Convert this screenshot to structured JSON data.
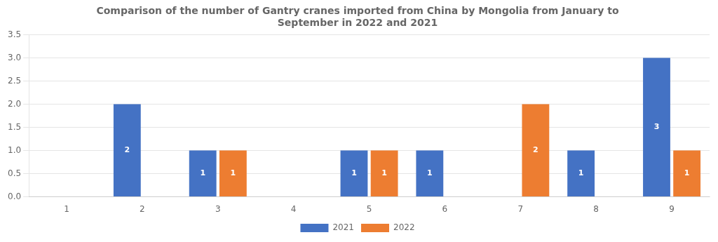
{
  "chart_data": {
    "type": "bar",
    "title": "Comparison of the number of Gantry cranes imported from China by Mongolia from January to\nSeptember in 2022 and 2021",
    "categories": [
      "1",
      "2",
      "3",
      "4",
      "5",
      "6",
      "7",
      "8",
      "9"
    ],
    "series": [
      {
        "name": "2021",
        "color": "#4472C4",
        "values": [
          0,
          2,
          1,
          0,
          1,
          1,
          0,
          1,
          3
        ]
      },
      {
        "name": "2022",
        "color": "#ED7D31",
        "values": [
          0,
          0,
          1,
          0,
          1,
          0,
          2,
          0,
          1
        ]
      }
    ],
    "ylim": [
      0,
      3.5
    ],
    "yticks": [
      {
        "value": 0,
        "label": "0.0"
      },
      {
        "value": 0.5,
        "label": "0.5"
      },
      {
        "value": 1,
        "label": "1.0"
      },
      {
        "value": 1.5,
        "label": "1.5"
      },
      {
        "value": 2,
        "label": "2.0"
      },
      {
        "value": 2.5,
        "label": "2.5"
      },
      {
        "value": 3,
        "label": "3.0"
      },
      {
        "value": 3.5,
        "label": "3.5"
      }
    ],
    "grid": true,
    "legend": "bottom",
    "data_labels": true
  }
}
